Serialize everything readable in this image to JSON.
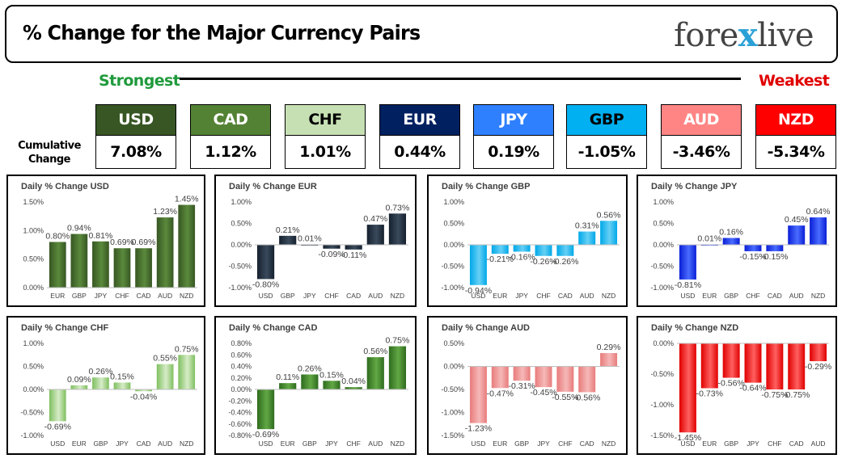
{
  "header": {
    "title": "% Change for the Major Currency Pairs",
    "logo": {
      "part1": "fore",
      "mark": "x",
      "part2": "live"
    }
  },
  "scale": {
    "strongest": "Strongest",
    "weakest": "Weakest"
  },
  "cumulative": {
    "label_line1": "Cumulative",
    "label_line2": "Change",
    "items": [
      {
        "code": "USD",
        "value": "7.08%",
        "bg": "#375623",
        "fg": "#ffffff"
      },
      {
        "code": "CAD",
        "value": "1.12%",
        "bg": "#548235",
        "fg": "#ffffff"
      },
      {
        "code": "CHF",
        "value": "1.01%",
        "bg": "#c6e0b4",
        "fg": "#000000"
      },
      {
        "code": "EUR",
        "value": "0.44%",
        "bg": "#002060",
        "fg": "#ffffff"
      },
      {
        "code": "JPY",
        "value": "0.19%",
        "bg": "#2f80ff",
        "fg": "#ffffff"
      },
      {
        "code": "GBP",
        "value": "-1.05%",
        "bg": "#00b0f0",
        "fg": "#000000"
      },
      {
        "code": "AUD",
        "value": "-3.46%",
        "bg": "#ff8585",
        "fg": "#ffffff"
      },
      {
        "code": "NZD",
        "value": "-5.34%",
        "bg": "#ff0000",
        "fg": "#ffffff"
      }
    ]
  },
  "chart_data": [
    {
      "type": "bar",
      "title": "Daily % Change USD",
      "categories": [
        "EUR",
        "GBP",
        "JPY",
        "CHF",
        "CAD",
        "AUD",
        "NZD"
      ],
      "values": [
        0.8,
        0.94,
        0.81,
        0.69,
        0.69,
        1.23,
        1.45
      ],
      "labels": [
        "0.80%",
        "0.94%",
        "0.81%",
        "0.69%",
        "0.69%",
        "1.23%",
        "1.45%"
      ],
      "yticks": [
        "0.00%",
        "0.50%",
        "1.00%",
        "1.50%"
      ],
      "ylim": [
        0,
        1.5
      ],
      "color": "#375623",
      "color_light": "#5a8a3c"
    },
    {
      "type": "bar",
      "title": "Daily % Change EUR",
      "categories": [
        "USD",
        "GBP",
        "JPY",
        "CHF",
        "CAD",
        "AUD",
        "NZD"
      ],
      "values": [
        -0.8,
        0.21,
        0.01,
        -0.09,
        -0.11,
        0.47,
        0.73
      ],
      "labels": [
        "-0.80%",
        "0.21%",
        "0.01%",
        "-0.09%",
        "-0.11%",
        "0.47%",
        "0.73%"
      ],
      "yticks": [
        "-1.00%",
        "-0.50%",
        "0.00%",
        "0.50%",
        "1.00%"
      ],
      "ylim": [
        -1,
        1
      ],
      "color": "#15202e",
      "color_light": "#3a4a5c"
    },
    {
      "type": "bar",
      "title": "Daily % Change GBP",
      "categories": [
        "USD",
        "EUR",
        "JPY",
        "CHF",
        "CAD",
        "AUD",
        "NZD"
      ],
      "values": [
        -0.94,
        -0.21,
        -0.16,
        -0.26,
        -0.26,
        0.31,
        0.56
      ],
      "labels": [
        "-0.94%",
        "-0.21%",
        "-0.16%",
        "-0.26%",
        "-0.26%",
        "0.31%",
        "0.56%"
      ],
      "yticks": [
        "-1.00%",
        "-0.50%",
        "0.00%",
        "0.50%",
        "1.00%"
      ],
      "ylim": [
        -1,
        1
      ],
      "color": "#00a8e8",
      "color_light": "#66d0f5"
    },
    {
      "type": "bar",
      "title": "Daily % Change JPY",
      "categories": [
        "USD",
        "EUR",
        "GBP",
        "CHF",
        "CAD",
        "AUD",
        "NZD"
      ],
      "values": [
        -0.81,
        0.01,
        0.16,
        -0.15,
        -0.15,
        0.45,
        0.64
      ],
      "labels": [
        "-0.81%",
        "0.01%",
        "0.16%",
        "-0.15%",
        "-0.15%",
        "0.45%",
        "0.64%"
      ],
      "yticks": [
        "-1.00%",
        "-0.50%",
        "0.00%",
        "0.50%",
        "1.00%"
      ],
      "ylim": [
        -1,
        1
      ],
      "color": "#0a1fd6",
      "color_light": "#4a6cff"
    },
    {
      "type": "bar",
      "title": "Daily % Change CHF",
      "categories": [
        "USD",
        "EUR",
        "GBP",
        "JPY",
        "CAD",
        "AUD",
        "NZD"
      ],
      "values": [
        -0.69,
        0.09,
        0.26,
        0.15,
        -0.04,
        0.55,
        0.75
      ],
      "labels": [
        "-0.69%",
        "0.09%",
        "0.26%",
        "0.15%",
        "-0.04%",
        "0.55%",
        "0.75%"
      ],
      "yticks": [
        "-1.00%",
        "-0.50%",
        "0.00%",
        "0.50%",
        "1.00%"
      ],
      "ylim": [
        -1,
        1
      ],
      "color": "#7fbf5f",
      "color_light": "#d7ecc8"
    },
    {
      "type": "bar",
      "title": "Daily % Change CAD",
      "categories": [
        "USD",
        "EUR",
        "GBP",
        "JPY",
        "CHF",
        "AUD",
        "NZD"
      ],
      "values": [
        -0.69,
        0.11,
        0.26,
        0.15,
        0.04,
        0.56,
        0.75
      ],
      "labels": [
        "-0.69%",
        "0.11%",
        "0.26%",
        "0.15%",
        "0.04%",
        "0.56%",
        "0.75%"
      ],
      "yticks": [
        "-0.80%",
        "-0.60%",
        "-0.40%",
        "-0.20%",
        "0.00%",
        "0.20%",
        "0.40%",
        "0.60%",
        "0.80%"
      ],
      "ylim": [
        -0.8,
        0.8
      ],
      "color": "#2e6b1e",
      "color_light": "#62a845"
    },
    {
      "type": "bar",
      "title": "Daily % Change AUD",
      "categories": [
        "USD",
        "EUR",
        "GBP",
        "JPY",
        "CHF",
        "CAD",
        "NZD"
      ],
      "values": [
        -1.23,
        -0.47,
        -0.31,
        -0.45,
        -0.55,
        -0.56,
        0.29
      ],
      "labels": [
        "-1.23%",
        "-0.47%",
        "-0.31%",
        "-0.45%",
        "-0.55%",
        "-0.56%",
        "0.29%"
      ],
      "yticks": [
        "-1.50%",
        "-1.00%",
        "-0.50%",
        "0.00%",
        "0.50%"
      ],
      "ylim": [
        -1.5,
        0.5
      ],
      "color": "#e87b7b",
      "color_light": "#f6b8b8"
    },
    {
      "type": "bar",
      "title": "Daily % Change NZD",
      "categories": [
        "USD",
        "EUR",
        "GBP",
        "JPY",
        "CHF",
        "CAD",
        "AUD"
      ],
      "values": [
        -1.45,
        -0.73,
        -0.56,
        -0.64,
        -0.75,
        -0.75,
        -0.29
      ],
      "labels": [
        "-1.45%",
        "-0.73%",
        "-0.56%",
        "-0.64%",
        "-0.75%",
        "-0.75%",
        "-0.29%"
      ],
      "yticks": [
        "-1.50%",
        "-1.00%",
        "-0.50%",
        "0.00%"
      ],
      "ylim": [
        -1.5,
        0
      ],
      "color": "#e00000",
      "color_light": "#ff6060"
    }
  ]
}
